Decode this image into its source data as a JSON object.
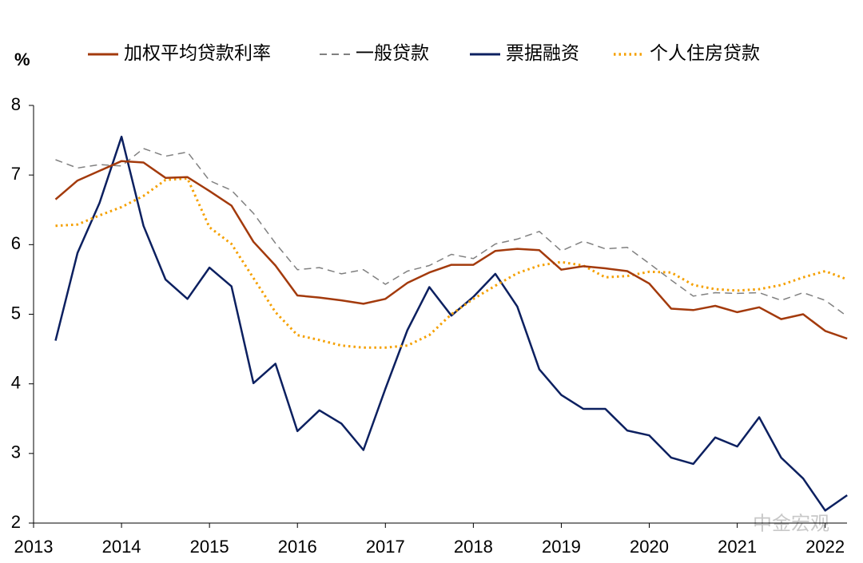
{
  "chart_data": {
    "type": "line",
    "y_label": "%",
    "watermark": "中金宏观",
    "x": [
      2013.25,
      2013.5,
      2013.75,
      2014,
      2014.25,
      2014.5,
      2014.75,
      2015,
      2015.25,
      2015.5,
      2015.75,
      2016,
      2016.25,
      2016.5,
      2016.75,
      2017,
      2017.25,
      2017.5,
      2017.75,
      2018,
      2018.25,
      2018.5,
      2018.75,
      2019,
      2019.25,
      2019.5,
      2019.75,
      2020,
      2020.25,
      2020.5,
      2020.75,
      2021,
      2021.25,
      2021.5,
      2021.75,
      2022,
      2022.25
    ],
    "xlim": [
      2013,
      2022.43
    ],
    "xticks": [
      2013,
      2014,
      2015,
      2016,
      2017,
      2018,
      2019,
      2020,
      2021,
      2022
    ],
    "ylim": [
      2,
      8
    ],
    "yticks": [
      2,
      3,
      4,
      5,
      6,
      7,
      8
    ],
    "series": [
      {
        "name": "加权平均贷款利率",
        "color": "#a33a0c",
        "line_style": "solid",
        "values": [
          6.65,
          6.92,
          7.06,
          7.2,
          7.18,
          6.96,
          6.97,
          6.77,
          6.56,
          6.04,
          5.7,
          5.27,
          5.24,
          5.2,
          5.15,
          5.22,
          5.45,
          5.6,
          5.71,
          5.71,
          5.91,
          5.94,
          5.92,
          5.64,
          5.69,
          5.66,
          5.62,
          5.44,
          5.08,
          5.06,
          5.12,
          5.03,
          5.1,
          4.93,
          5.0,
          4.76,
          4.65
        ]
      },
      {
        "name": "一般贷款",
        "color": "#808080",
        "line_style": "dashed",
        "values": [
          7.22,
          7.1,
          7.15,
          7.13,
          7.38,
          7.27,
          7.33,
          6.92,
          6.78,
          6.45,
          6.02,
          5.64,
          5.67,
          5.58,
          5.64,
          5.43,
          5.62,
          5.7,
          5.86,
          5.8,
          6.01,
          6.08,
          6.19,
          5.91,
          6.05,
          5.94,
          5.96,
          5.73,
          5.49,
          5.26,
          5.31,
          5.3,
          5.31,
          5.2,
          5.31,
          5.2,
          4.97
        ]
      },
      {
        "name": "票据融资",
        "color": "#0c2060",
        "line_style": "solid",
        "values": [
          4.62,
          5.88,
          6.6,
          7.55,
          6.27,
          5.5,
          5.22,
          5.67,
          5.4,
          4.01,
          4.29,
          3.32,
          3.62,
          3.43,
          3.05,
          3.93,
          4.77,
          5.39,
          4.98,
          5.25,
          5.58,
          5.11,
          4.21,
          3.84,
          3.64,
          3.64,
          3.33,
          3.26,
          2.94,
          2.85,
          3.23,
          3.1,
          3.52,
          2.94,
          2.64,
          2.18,
          2.4
        ]
      },
      {
        "name": "个人住房贷款",
        "color": "#f5a000",
        "line_style": "dotted",
        "values": [
          6.27,
          6.29,
          6.42,
          6.54,
          6.7,
          6.93,
          6.95,
          6.25,
          6.01,
          5.52,
          5.03,
          4.7,
          4.63,
          4.55,
          4.52,
          4.52,
          4.55,
          4.7,
          5.0,
          5.22,
          5.41,
          5.59,
          5.7,
          5.75,
          5.7,
          5.53,
          5.55,
          5.61,
          5.6,
          5.42,
          5.36,
          5.34,
          5.36,
          5.42,
          5.53,
          5.62,
          5.5
        ]
      }
    ]
  }
}
